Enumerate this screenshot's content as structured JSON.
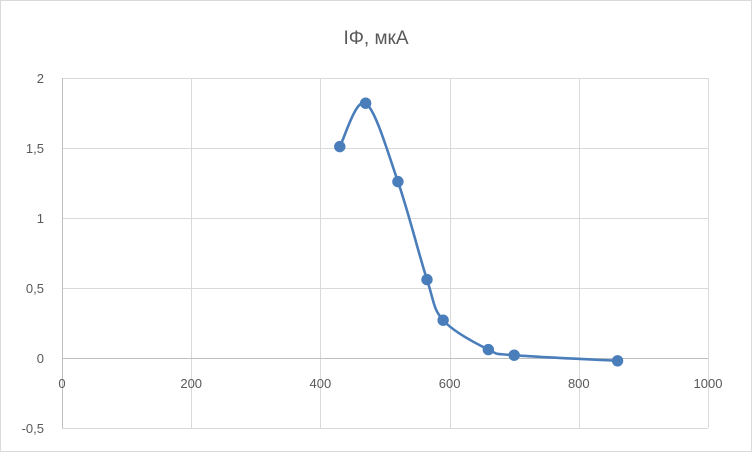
{
  "chart_data": {
    "type": "scatter",
    "title": "IΦ, мкА",
    "xlabel": "",
    "ylabel": "",
    "xlim": [
      0,
      1000
    ],
    "ylim": [
      -0.5,
      2
    ],
    "x_ticks": [
      0,
      200,
      400,
      600,
      800,
      1000
    ],
    "x_tick_labels": [
      "0",
      "200",
      "400",
      "600",
      "800",
      "1000"
    ],
    "y_ticks": [
      2,
      1.5,
      1,
      0.5,
      0,
      -0.5
    ],
    "y_tick_labels": [
      "2",
      "1,5",
      "1",
      "0,5",
      "0",
      "-0,5"
    ],
    "grid": true,
    "smooth_line": true,
    "series": [
      {
        "color": "#4a7ebb",
        "points": [
          {
            "x": 430,
            "y": 1.51
          },
          {
            "x": 470,
            "y": 1.82
          },
          {
            "x": 520,
            "y": 1.26
          },
          {
            "x": 565,
            "y": 0.56
          },
          {
            "x": 590,
            "y": 0.27
          },
          {
            "x": 660,
            "y": 0.06
          },
          {
            "x": 700,
            "y": 0.02
          },
          {
            "x": 860,
            "y": -0.02
          }
        ]
      }
    ]
  }
}
